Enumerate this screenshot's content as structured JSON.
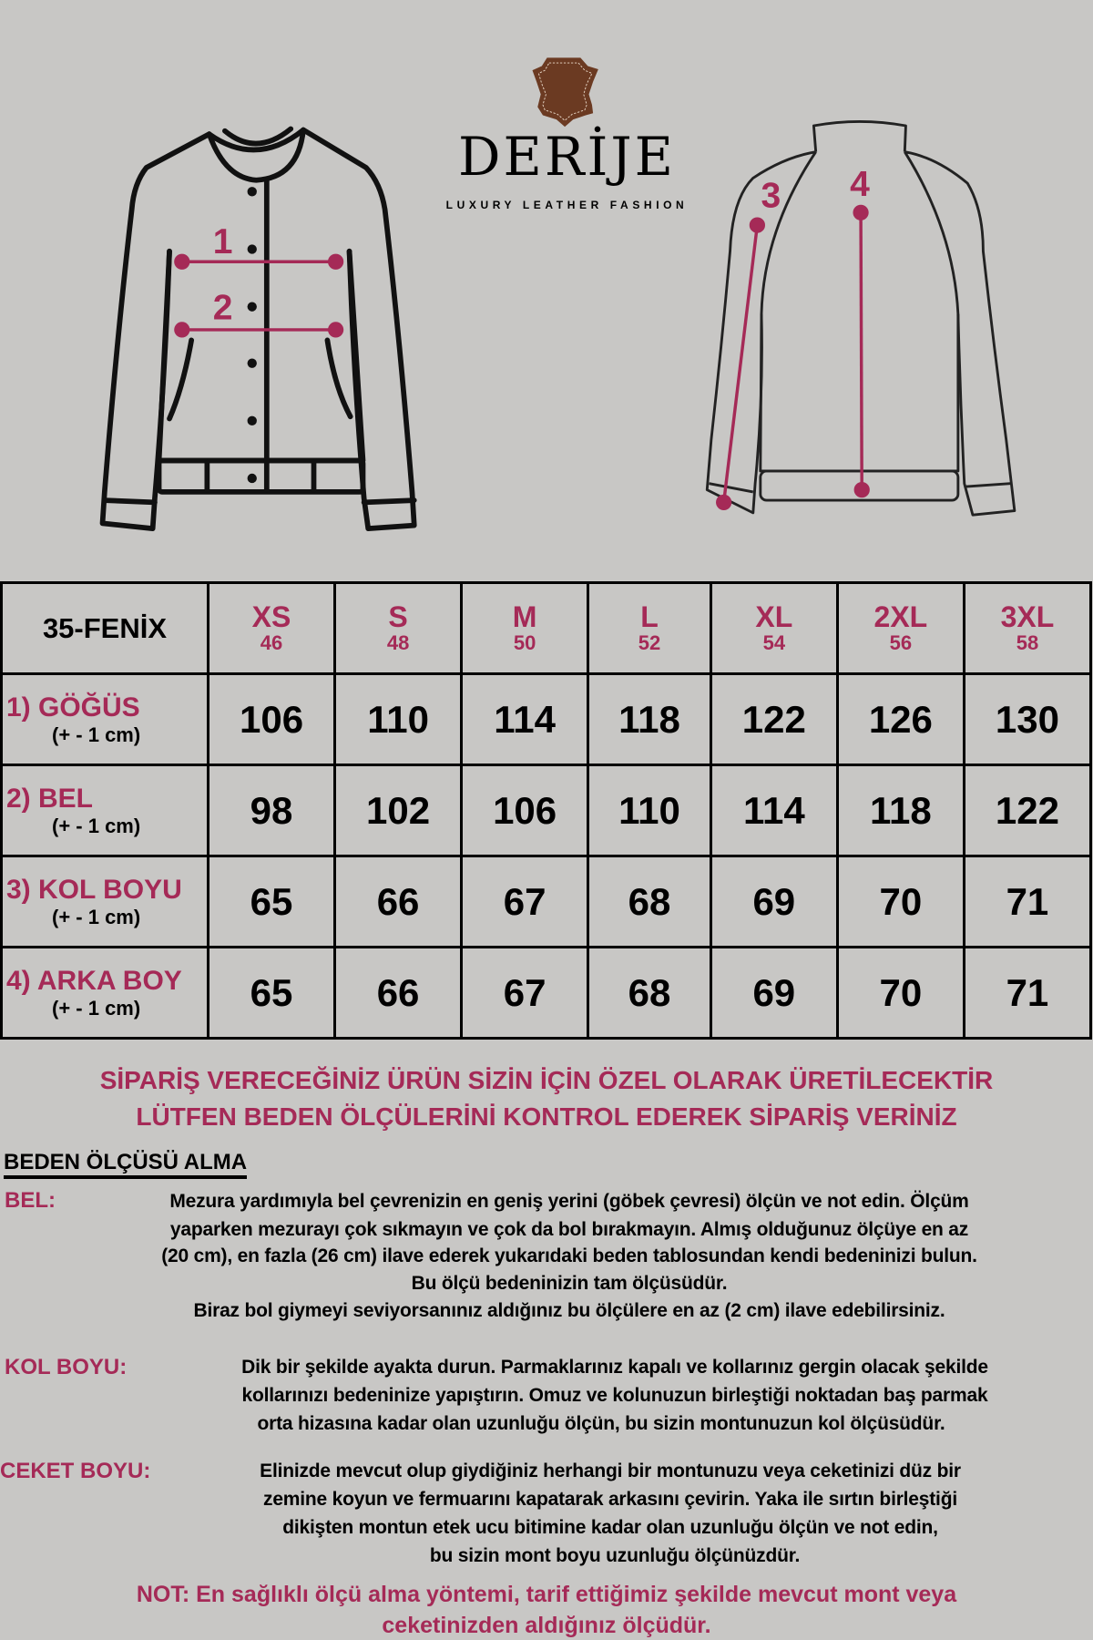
{
  "brand": {
    "name": "DERİJE",
    "tagline": "LUXURY LEATHER FASHION",
    "logo_icon": "leather-hide-icon",
    "logo_color": "#6b3a22"
  },
  "diagram": {
    "front_labels": [
      "1",
      "2"
    ],
    "back_labels": [
      "3",
      "4"
    ],
    "accent": "#a52a57"
  },
  "table": {
    "model": "35-FENİX",
    "sizes": [
      {
        "label": "XS",
        "number": "46"
      },
      {
        "label": "S",
        "number": "48"
      },
      {
        "label": "M",
        "number": "50"
      },
      {
        "label": "L",
        "number": "52"
      },
      {
        "label": "XL",
        "number": "54"
      },
      {
        "label": "2XL",
        "number": "56"
      },
      {
        "label": "3XL",
        "number": "58"
      }
    ],
    "rows": [
      {
        "label": "1) GÖĞÜS",
        "tolerance": "(+ - 1 cm)",
        "values": [
          "106",
          "110",
          "114",
          "118",
          "122",
          "126",
          "130"
        ]
      },
      {
        "label": "2) BEL",
        "tolerance": "(+ - 1 cm)",
        "values": [
          "98",
          "102",
          "106",
          "110",
          "114",
          "118",
          "122"
        ]
      },
      {
        "label": "3) KOL BOYU",
        "tolerance": "(+ - 1 cm)",
        "values": [
          "65",
          "66",
          "67",
          "68",
          "69",
          "70",
          "71"
        ]
      },
      {
        "label": "4) ARKA BOY",
        "tolerance": "(+ - 1 cm)",
        "values": [
          "65",
          "66",
          "67",
          "68",
          "69",
          "70",
          "71"
        ]
      }
    ]
  },
  "notice": [
    "SİPARİŞ VERECEĞİNİZ ÜRÜN SİZİN İÇİN ÖZEL OLARAK ÜRETİLECEKTİR",
    "LÜTFEN BEDEN ÖLÇÜLERİNİ KONTROL EDEREK SİPARİŞ VERİNİZ"
  ],
  "guide": {
    "title": "BEDEN ÖLÇÜSÜ ALMA",
    "bel": {
      "label": "BEL:",
      "lines": [
        "Mezura yardımıyla bel çevrenizin en geniş yerini (göbek çevresi) ölçün ve not edin. Ölçüm",
        "yaparken mezurayı çok sıkmayın ve çok da bol bırakmayın. Almış olduğunuz ölçüye en az",
        "(20 cm), en fazla (26 cm) ilave ederek yukarıdaki beden tablosundan kendi bedeninizi bulun.",
        "Bu ölçü bedeninizin tam ölçüsüdür.",
        "Biraz bol giymeyi seviyorsanınız aldığınız bu ölçülere en az (2 cm) ilave edebilirsiniz."
      ]
    },
    "kol": {
      "label": "KOL BOYU:",
      "lines": [
        "Dik bir şekilde ayakta durun. Parmaklarınız kapalı ve kollarınız gergin olacak şekilde",
        "kollarınızı bedeninize yapıştırın. Omuz ve kolunuzun birleştiği noktadan baş parmak",
        "orta hizasına kadar olan uzunluğu ölçün, bu sizin montunuzun kol ölçüsüdür."
      ]
    },
    "ceket": {
      "label": "CEKET BOYU:",
      "lines": [
        "Elinizde mevcut olup giydiğiniz herhangi bir montunuzu veya ceketinizi düz bir",
        "zemine koyun ve fermuarını kapatarak arkasını çevirin. Yaka ile sırtın birleştiği",
        "dikişten montun etek ucu bitimine kadar olan uzunluğu ölçün ve not edin,",
        "bu sizin mont boyu uzunluğu ölçünüzdür."
      ]
    },
    "note": [
      "NOT: En sağlıklı ölçü alma yöntemi, tarif ettiğimiz şekilde mevcut mont veya",
      "ceketinizden aldığınız ölçüdür."
    ]
  }
}
